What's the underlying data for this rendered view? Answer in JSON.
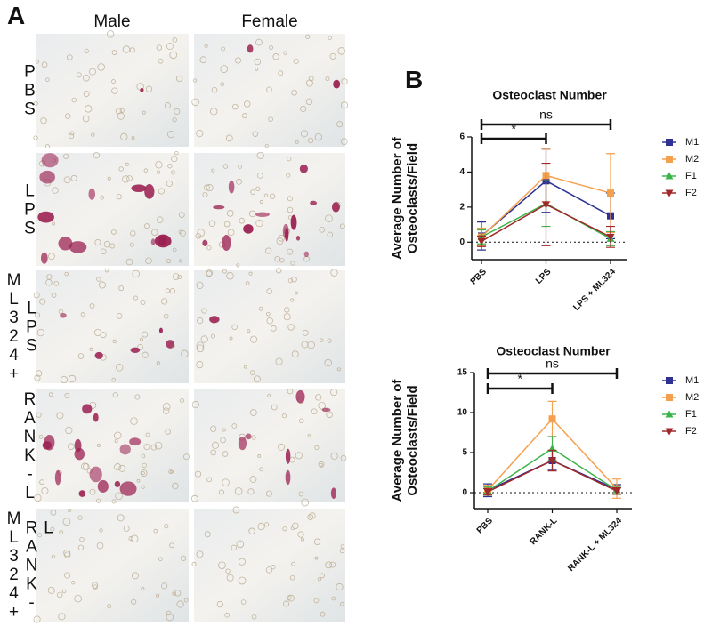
{
  "panel_a": {
    "letter": "A",
    "columns": [
      "Male",
      "Female"
    ],
    "rows": [
      [
        "PBS"
      ],
      [
        "LPS"
      ],
      [
        "ML324+",
        "LPS"
      ],
      [
        "RANK-L"
      ],
      [
        "ML324+",
        "RANK-L"
      ]
    ]
  },
  "panel_b": {
    "letter": "B"
  },
  "chart_data": [
    {
      "type": "line",
      "title": "Osteoclast Number",
      "y_label": [
        "Average Number of",
        "Osteoclasts/Field"
      ],
      "categories": [
        "PBS",
        "LPS",
        "LPS + ML324"
      ],
      "ylim": [
        -1,
        6
      ],
      "yticks": [
        0,
        2,
        4,
        6
      ],
      "reference_line": 0,
      "annotations": [
        {
          "text": "*",
          "from": 0,
          "to": 1
        },
        {
          "text": "ns",
          "from": 0,
          "to": 2
        }
      ],
      "series": [
        {
          "name": "M1",
          "color": "#2e3192",
          "marker": "square",
          "values": [
            0.35,
            3.5,
            1.5
          ],
          "errors": [
            0.8,
            1.8,
            1.3
          ]
        },
        {
          "name": "M2",
          "color": "#f5a04e",
          "marker": "square",
          "values": [
            0.3,
            3.8,
            2.8
          ],
          "errors": [
            0.5,
            1.5,
            2.25
          ]
        },
        {
          "name": "F1",
          "color": "#3cb44b",
          "marker": "triangle-up",
          "values": [
            0.3,
            2.2,
            0.2
          ],
          "errors": [
            0.4,
            1.3,
            0.4
          ]
        },
        {
          "name": "F2",
          "color": "#a0282a",
          "marker": "triangle-down",
          "values": [
            0.05,
            2.15,
            0.3
          ],
          "errors": [
            0.3,
            2.35,
            0.6
          ]
        }
      ]
    },
    {
      "type": "line",
      "title": "Osteoclast Number",
      "y_label": [
        "Average Number of",
        "Osteoclasts/Field"
      ],
      "categories": [
        "PBS",
        "RANK-L",
        "RANK-L + ML324"
      ],
      "ylim": [
        -2,
        15
      ],
      "yticks": [
        0,
        5,
        10,
        15
      ],
      "reference_line": 0,
      "annotations": [
        {
          "text": "*",
          "from": 0,
          "to": 1
        },
        {
          "text": "ns",
          "from": 0,
          "to": 2
        }
      ],
      "series": [
        {
          "name": "M1",
          "color": "#2e3192",
          "marker": "square",
          "values": [
            0.3,
            4,
            0.4
          ],
          "errors": [
            0.8,
            1.2,
            0.6
          ]
        },
        {
          "name": "M2",
          "color": "#f5a04e",
          "marker": "square",
          "values": [
            0.3,
            9.2,
            0.5
          ],
          "errors": [
            0.6,
            2.2,
            1.2
          ]
        },
        {
          "name": "F1",
          "color": "#3cb44b",
          "marker": "triangle-up",
          "values": [
            0.2,
            5.5,
            0.3
          ],
          "errors": [
            0.5,
            1.5,
            0.5
          ]
        },
        {
          "name": "F2",
          "color": "#a0282a",
          "marker": "triangle-down",
          "values": [
            0.1,
            4,
            0.2
          ],
          "errors": [
            0.4,
            1.3,
            0.4
          ]
        }
      ]
    }
  ]
}
